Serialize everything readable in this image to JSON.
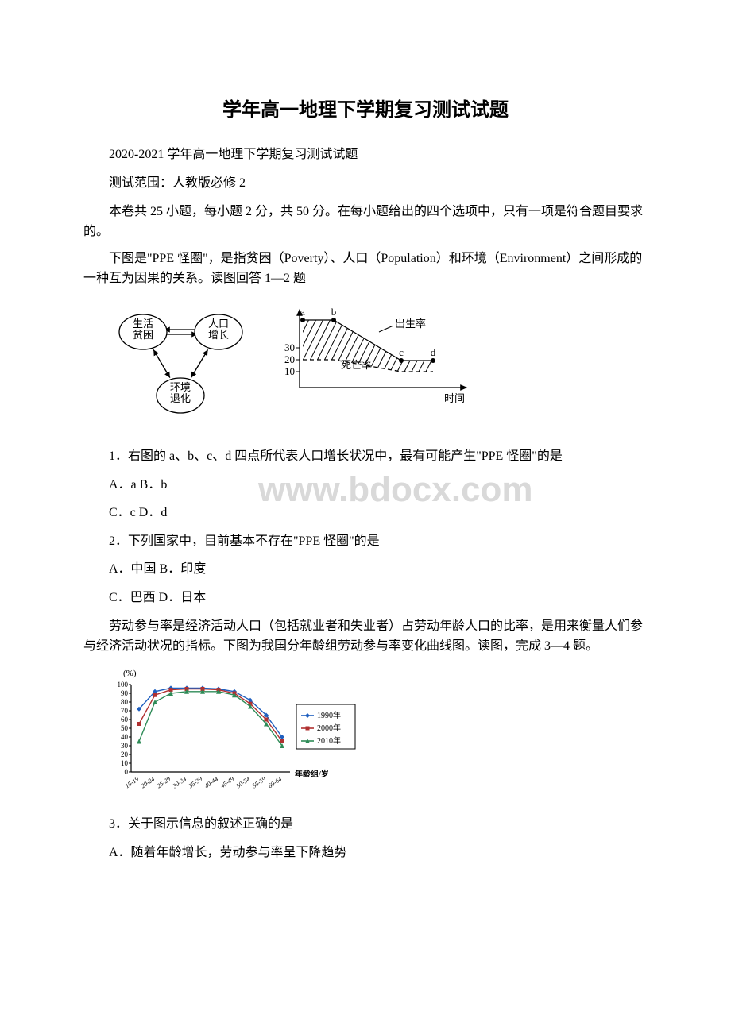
{
  "title": "学年高一地理下学期复习测试试题",
  "p1": "2020-2021 学年高一地理下学期复习测试试题",
  "p2": "测试范围：人教版必修 2",
  "p3": "本卷共 25 小题，每小题 2 分，共 50 分。在每小题给出的四个选项中，只有一项是符合题目要求的。",
  "p4": "下图是\"PPE 怪圈\"，是指贫困（Poverty）、人口（Population）和环境（Environment）之间形成的一种互为因果的关系。读图回答 1—2 题",
  "q1": "1．右图的 a、b、c、d 四点所代表人口增长状况中，最有可能产生\"PPE 怪圈\"的是",
  "q1ab": "A．a  B．b",
  "q1cd": "C．c  D．d",
  "q2": "2．下列国家中，目前基本不存在\"PPE 怪圈\"的是",
  "q2ab": "A．中国  B．印度",
  "q2cd": "C．巴西  D．日本",
  "p5": "劳动参与率是经济活动人口（包括就业者和失业者）占劳动年龄人口的比率，是用来衡量人们参与经济活动状况的指标。下图为我国分年龄组劳动参与率变化曲线图。读图，完成 3—4 题。",
  "q3": "3．关于图示信息的叙述正确的是",
  "q3a": "A．随着年龄增长，劳动参与率呈下降趋势",
  "watermark": "www.bdocx.com",
  "ppe": {
    "node1": "生活\n贫困",
    "node2": "人口\n增长",
    "node3": "环境\n退化",
    "node_stroke": "#000000",
    "node_fill": "#ffffff",
    "text_size": 13
  },
  "rate_chart": {
    "yticks": [
      10,
      20,
      30
    ],
    "points": [
      "a",
      "b",
      "c",
      "d"
    ],
    "label_birth": "出生率",
    "label_death": "死亡率",
    "xlabel": "时间",
    "axis_color": "#000000",
    "hatch_color": "#000000",
    "line_width": 1.3,
    "font_size": 13,
    "birth_line": [
      [
        36,
        25
      ],
      [
        75,
        25
      ],
      [
        160,
        76
      ],
      [
        200,
        76
      ]
    ],
    "death_line": [
      [
        36,
        75
      ],
      [
        75,
        75
      ],
      [
        160,
        90
      ],
      [
        200,
        90
      ]
    ],
    "point_coords": {
      "a": [
        36,
        25
      ],
      "b": [
        75,
        25
      ],
      "c": [
        160,
        76
      ],
      "d": [
        200,
        76
      ]
    },
    "ytick_y": {
      "10": 90,
      "20": 75,
      "30": 60
    }
  },
  "lpr_chart": {
    "ylabel": "(%)",
    "yticks": [
      0,
      10,
      20,
      30,
      40,
      50,
      60,
      70,
      80,
      90,
      100
    ],
    "xticks": [
      "15-19",
      "20-24",
      "25-29",
      "30-34",
      "35-39",
      "40-44",
      "45-49",
      "50-54",
      "55-59",
      "60-64"
    ],
    "xlabel": "年龄组/岁",
    "legend": [
      "1990年",
      "2000年",
      "2010年"
    ],
    "legend_colors": [
      "#1f5fbf",
      "#b03030",
      "#2e8b57"
    ],
    "markers": [
      "diamond",
      "square",
      "triangle"
    ],
    "axis_color": "#000000",
    "grid_color": "#000000",
    "font_size": 11,
    "series": {
      "1990": [
        72,
        92,
        96,
        96,
        96,
        95,
        92,
        82,
        65,
        40
      ],
      "2000": [
        55,
        88,
        94,
        95,
        95,
        94,
        90,
        78,
        60,
        35
      ],
      "2010": [
        35,
        80,
        90,
        92,
        92,
        92,
        88,
        75,
        55,
        30
      ]
    }
  }
}
